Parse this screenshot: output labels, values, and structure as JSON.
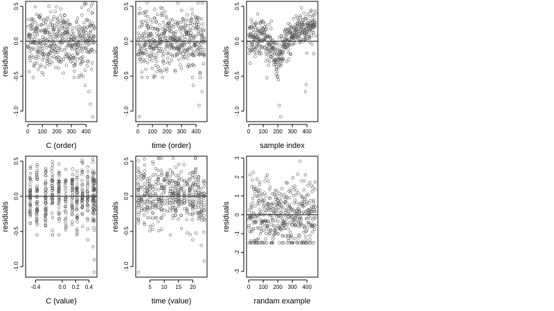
{
  "colors": {
    "point": "#555555",
    "axis": "#000000",
    "background": "#ffffff"
  },
  "chart_data": [
    {
      "type": "scatter",
      "xlabel": "C (order)",
      "ylabel": "residuals",
      "xlim": [
        -15,
        475
      ],
      "ylim": [
        -1.15,
        0.57
      ],
      "xticks": [
        0,
        100,
        200,
        300,
        400
      ],
      "yticks": [
        -1.0,
        -0.5,
        0.0,
        0.5
      ],
      "ytick_labels": [
        "-1.0",
        "-0.5",
        "0.0",
        "0.5"
      ],
      "hline": 0,
      "n_points": 460,
      "points_estimate": "400-460 points, mostly between -0.4 and 0.5, outliers near -0.7, -0.9, -1.1 at index ~420-450",
      "generator": {
        "kind": "index",
        "amp": 0.22,
        "wave": 0.05,
        "outliers": [
          [
            420,
            -0.72
          ],
          [
            430,
            -0.9
          ],
          [
            445,
            -1.08
          ],
          [
            395,
            -0.63
          ]
        ]
      }
    },
    {
      "type": "scatter",
      "xlabel": "time (order)",
      "ylabel": "residuals",
      "xlim": [
        -15,
        475
      ],
      "ylim": [
        -1.15,
        0.57
      ],
      "xticks": [
        0,
        100,
        200,
        300,
        400
      ],
      "yticks": [
        -1.0,
        -0.5,
        0.0,
        0.5
      ],
      "ytick_labels": [
        "-1.0",
        "-0.5",
        "0.0",
        "0.5"
      ],
      "hline": 0,
      "n_points": 460,
      "generator": {
        "kind": "index",
        "amp": 0.22,
        "wave": 0.04,
        "outliers": [
          [
            10,
            -1.08
          ],
          [
            420,
            -0.92
          ],
          [
            440,
            -0.72
          ],
          [
            380,
            -0.63
          ]
        ]
      }
    },
    {
      "type": "scatter",
      "xlabel": "sample index",
      "ylabel": "residuals",
      "xlim": [
        -15,
        475
      ],
      "ylim": [
        -1.15,
        0.57
      ],
      "xticks": [
        0,
        100,
        200,
        300,
        400
      ],
      "yticks": [
        -1.0,
        -0.5,
        0.0,
        0.5
      ],
      "ytick_labels": [
        "-1.0",
        "-0.5",
        "0.0",
        "0.5"
      ],
      "hline": 0,
      "n_points": 460,
      "generator": {
        "kind": "trend",
        "amp": 0.13,
        "trend": [
          [
            0,
            0.05
          ],
          [
            100,
            0.1
          ],
          [
            200,
            -0.3
          ],
          [
            250,
            -0.05
          ],
          [
            350,
            0.2
          ],
          [
            460,
            0.2
          ]
        ],
        "outliers": [
          [
            210,
            -0.92
          ],
          [
            220,
            -1.08
          ],
          [
            390,
            -0.72
          ],
          [
            395,
            -0.62
          ]
        ]
      }
    },
    {
      "type": "scatter",
      "xlabel": "C (value)",
      "ylabel": "residuals",
      "xlim": [
        -0.55,
        0.52
      ],
      "ylim": [
        -1.15,
        0.57
      ],
      "xticks": [
        -0.4,
        0.0,
        0.2,
        0.4
      ],
      "xtick_labels": [
        "-0.4",
        "0.0",
        "0.2",
        "0.4"
      ],
      "yticks": [
        -1.0,
        -0.5,
        0.0,
        0.5
      ],
      "ytick_labels": [
        "-1.0",
        "-0.5",
        "0.0",
        "0.5"
      ],
      "hline": 0,
      "n_points": 460,
      "generator": {
        "kind": "columns",
        "columns": [
          -0.48,
          -0.38,
          -0.25,
          -0.15,
          -0.05,
          0.05,
          0.15,
          0.22,
          0.3,
          0.38,
          0.46,
          0.48
        ],
        "amp": 0.22,
        "outliers": [
          [
            0.46,
            -0.72
          ],
          [
            0.48,
            -0.9
          ],
          [
            0.48,
            -1.08
          ],
          [
            0.38,
            -0.62
          ]
        ]
      }
    },
    {
      "type": "scatter",
      "xlabel": "time (value)",
      "ylabel": "residuals",
      "xlim": [
        0,
        25
      ],
      "ylim": [
        -1.15,
        0.57
      ],
      "xticks": [
        5,
        10,
        15,
        20
      ],
      "yticks": [
        -1.0,
        -0.5,
        0.0,
        0.5
      ],
      "ytick_labels": [
        "-1.0",
        "-0.5",
        "0.0",
        "0.5"
      ],
      "hline": 0,
      "n_points": 460,
      "generator": {
        "kind": "columns",
        "columns": [
          1,
          2,
          3,
          4,
          5,
          6,
          7,
          8,
          9,
          10,
          11,
          12,
          13,
          14,
          15,
          16,
          17,
          18,
          19,
          20,
          21,
          22,
          23,
          24
        ],
        "amp": 0.22,
        "outliers": [
          [
            1,
            -1.08
          ],
          [
            24,
            -0.92
          ],
          [
            23,
            -0.7
          ],
          [
            20,
            -0.62
          ]
        ]
      }
    },
    {
      "type": "scatter",
      "xlabel": "randam example",
      "ylabel": "residuals",
      "xlim": [
        -15,
        475
      ],
      "ylim": [
        -3.3,
        3.1
      ],
      "xticks": [
        0,
        100,
        200,
        300,
        400
      ],
      "yticks": [
        -3,
        -2,
        -1,
        0,
        1,
        2,
        3
      ],
      "ytick_labels": [
        "-3",
        "-2",
        "-1",
        "0",
        "1",
        "2",
        "3"
      ],
      "hline": 0,
      "n_points": 460,
      "generator": {
        "kind": "index",
        "amp": 1.0,
        "wave": 0,
        "outliers": []
      }
    }
  ]
}
